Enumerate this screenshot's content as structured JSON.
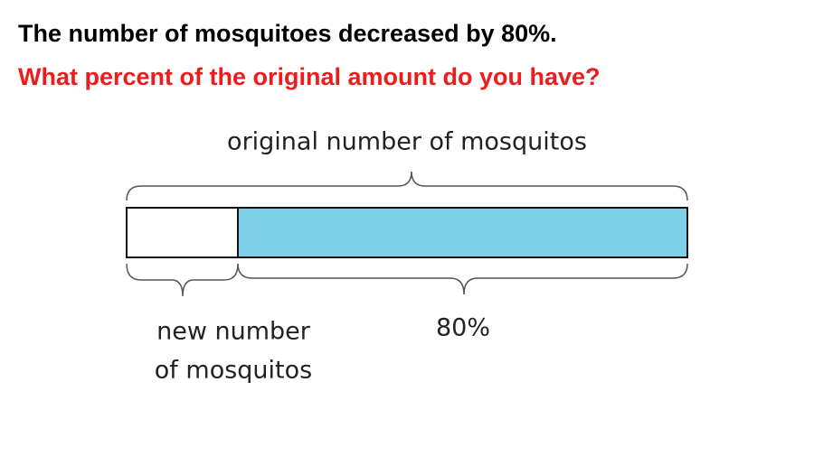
{
  "question": {
    "statement": "The number of mosquitoes decreased by 80%.",
    "prompt": "What percent of the original amount do you have?"
  },
  "diagram": {
    "top_label": "original number of mosquitos",
    "left_label": [
      "new number",
      "of mosquitos"
    ],
    "right_label": "80%"
  }
}
